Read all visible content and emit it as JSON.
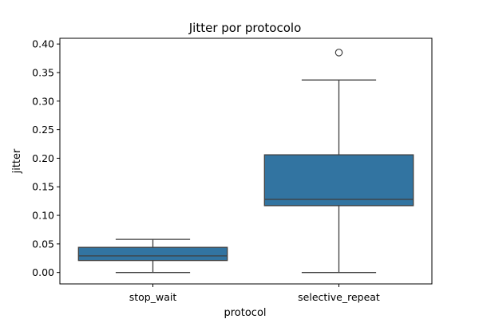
{
  "chart_data": {
    "type": "box",
    "title": "Jitter por protocolo",
    "xlabel": "protocol",
    "ylabel": "jitter",
    "ylim": [
      -0.02,
      0.41
    ],
    "yticks": [
      0.0,
      0.05,
      0.1,
      0.15,
      0.2,
      0.25,
      0.3,
      0.35,
      0.4
    ],
    "ytick_labels": [
      "0.00",
      "0.05",
      "0.10",
      "0.15",
      "0.20",
      "0.25",
      "0.30",
      "0.35",
      "0.40"
    ],
    "grid": false,
    "color": "#3274a1",
    "categories": [
      "stop_wait",
      "selective_repeat"
    ],
    "boxes": [
      {
        "category": "stop_wait",
        "whisker_low": 0.0,
        "q1": 0.021,
        "median": 0.029,
        "q3": 0.044,
        "whisker_high": 0.058,
        "outliers": []
      },
      {
        "category": "selective_repeat",
        "whisker_low": 0.0,
        "q1": 0.117,
        "median": 0.128,
        "q3": 0.206,
        "whisker_high": 0.337,
        "outliers": [
          0.385
        ]
      }
    ]
  }
}
